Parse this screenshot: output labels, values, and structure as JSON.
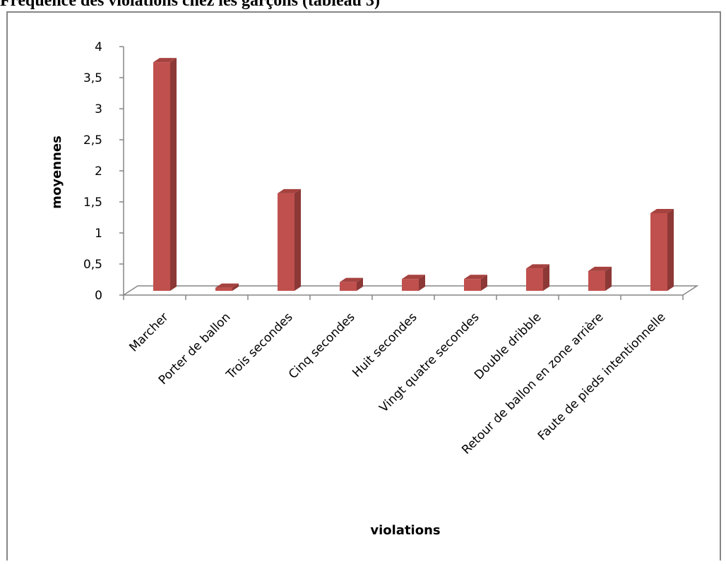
{
  "header": {
    "title": "Fréquence des violations chez les garçons (tableau 3)"
  },
  "chart_data": {
    "type": "bar",
    "title": "",
    "xlabel": "violations",
    "ylabel": "moyennes",
    "ylim": [
      0,
      4
    ],
    "yticks": [
      "0",
      "0,5",
      "1",
      "1,5",
      "2",
      "2,5",
      "3",
      "3,5",
      "4"
    ],
    "grid": false,
    "legend": "none",
    "bar_color": "#c0504d",
    "categories": [
      "Marcher",
      "Porter de ballon",
      "Trois secondes",
      "Cinq secondes",
      "Huit secondes",
      "Vingt quatre secondes",
      "Double dribble",
      "Retour de ballon en zone arrière",
      "Faute de pieds intentionnelle"
    ],
    "values": [
      3.68,
      0.05,
      1.57,
      0.14,
      0.19,
      0.19,
      0.36,
      0.32,
      1.25
    ]
  }
}
